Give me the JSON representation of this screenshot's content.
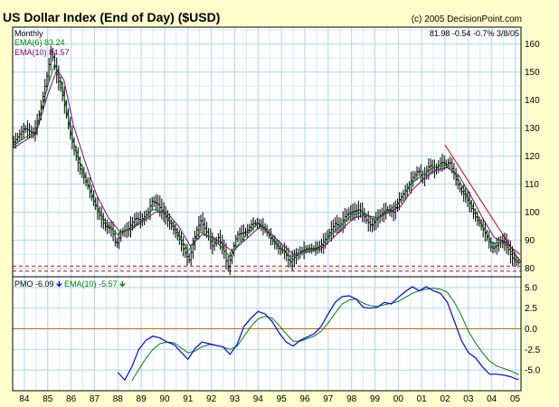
{
  "chart_data": [
    {
      "type": "ohlc",
      "title": "US Dollar Index (End of Day) ($USD)",
      "copyright": "(c) 2005 DecisionPoint.com",
      "period_label": "Monthly",
      "quote": {
        "last": "81.98",
        "change": "-0.54",
        "pct_change": "-0.7%",
        "date": "3/8/05"
      },
      "series": [
        {
          "name": "Price",
          "color": "#000000"
        },
        {
          "name": "EMA(6)",
          "legend_value": "83.24",
          "color": "#008000"
        },
        {
          "name": "EMA(10)",
          "legend_value": "84.57",
          "color": "#800080"
        }
      ],
      "x_ticks": [
        "84",
        "85",
        "86",
        "87",
        "88",
        "89",
        "90",
        "91",
        "92",
        "93",
        "94",
        "95",
        "96",
        "97",
        "98",
        "99",
        "00",
        "01",
        "02",
        "03",
        "04",
        "05"
      ],
      "x_range": [
        1983.5,
        2005.25
      ],
      "y_ticks": [
        80,
        90,
        100,
        110,
        120,
        130,
        140,
        150,
        160
      ],
      "ylim": [
        77,
        166
      ],
      "price_keys": [
        [
          1983.55,
          125
        ],
        [
          1984.0,
          130
        ],
        [
          1984.4,
          128
        ],
        [
          1984.7,
          137
        ],
        [
          1985.0,
          150
        ],
        [
          1985.15,
          158
        ],
        [
          1985.35,
          150
        ],
        [
          1985.6,
          143
        ],
        [
          1985.85,
          133
        ],
        [
          1986.1,
          123
        ],
        [
          1986.4,
          115
        ],
        [
          1986.75,
          109
        ],
        [
          1987.1,
          101
        ],
        [
          1987.45,
          95
        ],
        [
          1987.75,
          94
        ],
        [
          1987.92,
          88
        ],
        [
          1988.15,
          93
        ],
        [
          1988.45,
          94
        ],
        [
          1988.75,
          98
        ],
        [
          1989.0,
          97
        ],
        [
          1989.3,
          100
        ],
        [
          1989.45,
          104
        ],
        [
          1989.7,
          103
        ],
        [
          1990.0,
          99
        ],
        [
          1990.3,
          95
        ],
        [
          1990.6,
          91
        ],
        [
          1990.85,
          86
        ],
        [
          1991.05,
          83
        ],
        [
          1991.35,
          93
        ],
        [
          1991.55,
          97
        ],
        [
          1991.8,
          93
        ],
        [
          1992.05,
          88
        ],
        [
          1992.3,
          91
        ],
        [
          1992.55,
          86
        ],
        [
          1992.7,
          80
        ],
        [
          1992.9,
          86
        ],
        [
          1993.1,
          92
        ],
        [
          1993.5,
          93
        ],
        [
          1993.75,
          96
        ],
        [
          1994.0,
          96
        ],
        [
          1994.3,
          94
        ],
        [
          1994.6,
          90
        ],
        [
          1994.9,
          87
        ],
        [
          1995.15,
          86
        ],
        [
          1995.35,
          82
        ],
        [
          1995.55,
          84
        ],
        [
          1995.8,
          86
        ],
        [
          1996.1,
          87
        ],
        [
          1996.4,
          87
        ],
        [
          1996.7,
          88
        ],
        [
          1997.0,
          92
        ],
        [
          1997.3,
          96
        ],
        [
          1997.5,
          95
        ],
        [
          1997.75,
          99
        ],
        [
          1998.0,
          100
        ],
        [
          1998.35,
          101
        ],
        [
          1998.65,
          97
        ],
        [
          1998.85,
          95
        ],
        [
          1999.1,
          98
        ],
        [
          1999.5,
          101
        ],
        [
          1999.8,
          100
        ],
        [
          2000.0,
          104
        ],
        [
          2000.35,
          108
        ],
        [
          2000.6,
          112
        ],
        [
          2000.85,
          115
        ],
        [
          2001.05,
          112
        ],
        [
          2001.35,
          117
        ],
        [
          2001.55,
          115
        ],
        [
          2001.85,
          118
        ],
        [
          2002.05,
          117
        ],
        [
          2002.2,
          118
        ],
        [
          2002.45,
          112
        ],
        [
          2002.65,
          108
        ],
        [
          2002.85,
          106
        ],
        [
          2003.05,
          103
        ],
        [
          2003.25,
          99
        ],
        [
          2003.55,
          95
        ],
        [
          2003.75,
          92
        ],
        [
          2004.0,
          87
        ],
        [
          2004.2,
          88
        ],
        [
          2004.4,
          90
        ],
        [
          2004.6,
          89
        ],
        [
          2004.85,
          84
        ],
        [
          2005.1,
          82
        ],
        [
          2005.2,
          82
        ]
      ],
      "ema6_keys": [
        [
          1983.55,
          124
        ],
        [
          1984.5,
          129
        ],
        [
          1985.0,
          145
        ],
        [
          1985.3,
          153
        ],
        [
          1985.6,
          146
        ],
        [
          1986.0,
          128
        ],
        [
          1986.5,
          115
        ],
        [
          1987.0,
          104
        ],
        [
          1987.5,
          96
        ],
        [
          1988.0,
          92
        ],
        [
          1988.5,
          94
        ],
        [
          1989.0,
          97
        ],
        [
          1989.5,
          101
        ],
        [
          1990.0,
          100
        ],
        [
          1990.5,
          94
        ],
        [
          1991.0,
          86
        ],
        [
          1991.5,
          93
        ],
        [
          1992.0,
          91
        ],
        [
          1992.5,
          87
        ],
        [
          1992.8,
          84
        ],
        [
          1993.2,
          89
        ],
        [
          1993.6,
          93
        ],
        [
          1994.0,
          96
        ],
        [
          1994.5,
          92
        ],
        [
          1995.0,
          87
        ],
        [
          1995.4,
          84
        ],
        [
          1996.0,
          86
        ],
        [
          1996.6,
          87
        ],
        [
          1997.0,
          91
        ],
        [
          1997.5,
          95
        ],
        [
          1998.0,
          99
        ],
        [
          1998.5,
          100
        ],
        [
          1999.0,
          97
        ],
        [
          1999.5,
          100
        ],
        [
          2000.0,
          103
        ],
        [
          2000.5,
          110
        ],
        [
          2001.0,
          113
        ],
        [
          2001.5,
          116
        ],
        [
          2002.0,
          117
        ],
        [
          2002.5,
          113
        ],
        [
          2003.0,
          105
        ],
        [
          2003.5,
          97
        ],
        [
          2004.0,
          89
        ],
        [
          2004.5,
          89
        ],
        [
          2005.2,
          83
        ]
      ],
      "ema10_keys": [
        [
          1983.55,
          123
        ],
        [
          1984.5,
          128
        ],
        [
          1985.0,
          142
        ],
        [
          1985.4,
          151
        ],
        [
          1985.7,
          147
        ],
        [
          1986.1,
          131
        ],
        [
          1986.6,
          118
        ],
        [
          1987.1,
          106
        ],
        [
          1987.6,
          98
        ],
        [
          1988.1,
          93
        ],
        [
          1988.6,
          94
        ],
        [
          1989.1,
          97
        ],
        [
          1989.6,
          100
        ],
        [
          1990.1,
          100
        ],
        [
          1990.6,
          95
        ],
        [
          1991.1,
          88
        ],
        [
          1991.6,
          92
        ],
        [
          1992.1,
          91
        ],
        [
          1992.6,
          88
        ],
        [
          1992.9,
          86
        ],
        [
          1993.3,
          89
        ],
        [
          1993.7,
          92
        ],
        [
          1994.1,
          95
        ],
        [
          1994.6,
          92
        ],
        [
          1995.1,
          88
        ],
        [
          1995.5,
          85
        ],
        [
          1996.1,
          86
        ],
        [
          1996.7,
          87
        ],
        [
          1997.1,
          90
        ],
        [
          1997.6,
          94
        ],
        [
          1998.1,
          98
        ],
        [
          1998.6,
          99
        ],
        [
          1999.1,
          98
        ],
        [
          1999.6,
          100
        ],
        [
          2000.1,
          102
        ],
        [
          2000.6,
          108
        ],
        [
          2001.1,
          112
        ],
        [
          2001.6,
          115
        ],
        [
          2002.1,
          116
        ],
        [
          2002.6,
          113
        ],
        [
          2003.1,
          106
        ],
        [
          2003.6,
          98
        ],
        [
          2004.1,
          91
        ],
        [
          2004.6,
          89
        ],
        [
          2005.2,
          85
        ]
      ],
      "trendline": [
        [
          2002.0,
          124
        ],
        [
          2005.25,
          82
        ]
      ],
      "support_lines": [
        80.8,
        79
      ]
    },
    {
      "type": "line",
      "series": [
        {
          "name": "PMO",
          "legend_value": "-6.09",
          "direction": "down",
          "color": "#0000ff",
          "keys": [
            [
              1988.0,
              -5.3
            ],
            [
              1988.3,
              -6.2
            ],
            [
              1988.6,
              -4.6
            ],
            [
              1988.9,
              -2.5
            ],
            [
              1989.2,
              -1.4
            ],
            [
              1989.5,
              -0.9
            ],
            [
              1989.8,
              -1.1
            ],
            [
              1990.1,
              -1.6
            ],
            [
              1990.4,
              -1.9
            ],
            [
              1990.7,
              -2.8
            ],
            [
              1991.0,
              -3.7
            ],
            [
              1991.3,
              -2.4
            ],
            [
              1991.6,
              -1.6
            ],
            [
              1991.9,
              -1.8
            ],
            [
              1992.2,
              -2.0
            ],
            [
              1992.5,
              -2.2
            ],
            [
              1992.8,
              -3.1
            ],
            [
              1993.1,
              -1.9
            ],
            [
              1993.4,
              0.3
            ],
            [
              1993.7,
              1.3
            ],
            [
              1994.0,
              2.1
            ],
            [
              1994.3,
              1.8
            ],
            [
              1994.6,
              0.9
            ],
            [
              1994.9,
              -0.5
            ],
            [
              1995.2,
              -1.6
            ],
            [
              1995.5,
              -2.1
            ],
            [
              1995.8,
              -1.4
            ],
            [
              1996.1,
              -1.0
            ],
            [
              1996.4,
              -0.6
            ],
            [
              1996.7,
              0.3
            ],
            [
              1997.0,
              1.8
            ],
            [
              1997.3,
              3.2
            ],
            [
              1997.6,
              3.9
            ],
            [
              1997.9,
              4.0
            ],
            [
              1998.2,
              3.6
            ],
            [
              1998.5,
              2.6
            ],
            [
              1998.8,
              2.5
            ],
            [
              1999.1,
              2.6
            ],
            [
              1999.4,
              3.2
            ],
            [
              1999.7,
              3.0
            ],
            [
              2000.0,
              3.8
            ],
            [
              2000.3,
              4.5
            ],
            [
              2000.6,
              5.1
            ],
            [
              2000.9,
              4.6
            ],
            [
              2001.2,
              5.1
            ],
            [
              2001.5,
              4.6
            ],
            [
              2001.8,
              4.3
            ],
            [
              2002.1,
              3.2
            ],
            [
              2002.4,
              0.9
            ],
            [
              2002.7,
              -1.4
            ],
            [
              2003.0,
              -2.9
            ],
            [
              2003.3,
              -3.5
            ],
            [
              2003.6,
              -4.6
            ],
            [
              2003.9,
              -5.5
            ],
            [
              2004.2,
              -5.5
            ],
            [
              2004.5,
              -5.6
            ],
            [
              2004.8,
              -5.8
            ],
            [
              2005.05,
              -6.1
            ],
            [
              2005.15,
              -6.1
            ]
          ]
        },
        {
          "name": "EMA(10)",
          "legend_value": "-5.57",
          "direction": "down",
          "color": "#008000",
          "keys": [
            [
              1988.6,
              -6.3
            ],
            [
              1988.9,
              -4.9
            ],
            [
              1989.2,
              -3.6
            ],
            [
              1989.5,
              -2.5
            ],
            [
              1989.8,
              -1.8
            ],
            [
              1990.1,
              -1.6
            ],
            [
              1990.4,
              -1.7
            ],
            [
              1990.7,
              -2.3
            ],
            [
              1991.0,
              -2.9
            ],
            [
              1991.3,
              -2.7
            ],
            [
              1991.6,
              -2.2
            ],
            [
              1991.9,
              -1.9
            ],
            [
              1992.2,
              -2.0
            ],
            [
              1992.5,
              -2.2
            ],
            [
              1992.8,
              -2.5
            ],
            [
              1993.1,
              -2.1
            ],
            [
              1993.4,
              -0.9
            ],
            [
              1993.7,
              0.3
            ],
            [
              1994.0,
              1.2
            ],
            [
              1994.3,
              1.5
            ],
            [
              1994.6,
              1.3
            ],
            [
              1994.9,
              0.4
            ],
            [
              1995.2,
              -0.6
            ],
            [
              1995.5,
              -1.5
            ],
            [
              1995.8,
              -1.5
            ],
            [
              1996.1,
              -1.2
            ],
            [
              1996.4,
              -0.9
            ],
            [
              1996.7,
              -0.3
            ],
            [
              1997.0,
              0.7
            ],
            [
              1997.3,
              1.9
            ],
            [
              1997.6,
              3.0
            ],
            [
              1997.9,
              3.5
            ],
            [
              1998.2,
              3.6
            ],
            [
              1998.5,
              3.1
            ],
            [
              1998.8,
              2.8
            ],
            [
              1999.1,
              2.7
            ],
            [
              1999.4,
              2.9
            ],
            [
              1999.7,
              3.1
            ],
            [
              2000.0,
              3.3
            ],
            [
              2000.3,
              3.8
            ],
            [
              2000.6,
              4.3
            ],
            [
              2000.9,
              4.6
            ],
            [
              2001.2,
              4.8
            ],
            [
              2001.5,
              4.9
            ],
            [
              2001.8,
              4.8
            ],
            [
              2002.1,
              4.4
            ],
            [
              2002.4,
              3.2
            ],
            [
              2002.7,
              1.6
            ],
            [
              2003.0,
              -0.3
            ],
            [
              2003.3,
              -1.7
            ],
            [
              2003.6,
              -2.9
            ],
            [
              2003.9,
              -3.9
            ],
            [
              2004.2,
              -4.5
            ],
            [
              2004.5,
              -4.8
            ],
            [
              2004.8,
              -5.1
            ],
            [
              2005.05,
              -5.4
            ],
            [
              2005.15,
              -5.6
            ]
          ]
        }
      ],
      "y_ticks": [
        -5.0,
        -2.5,
        0.0,
        2.5,
        5.0
      ],
      "y_tick_labels": [
        "-5.0",
        "-2.5",
        "0.0",
        "2.5",
        "5.0"
      ],
      "ylim": [
        -7.5,
        6.3
      ],
      "zero_line_color": "#cc6600"
    }
  ]
}
